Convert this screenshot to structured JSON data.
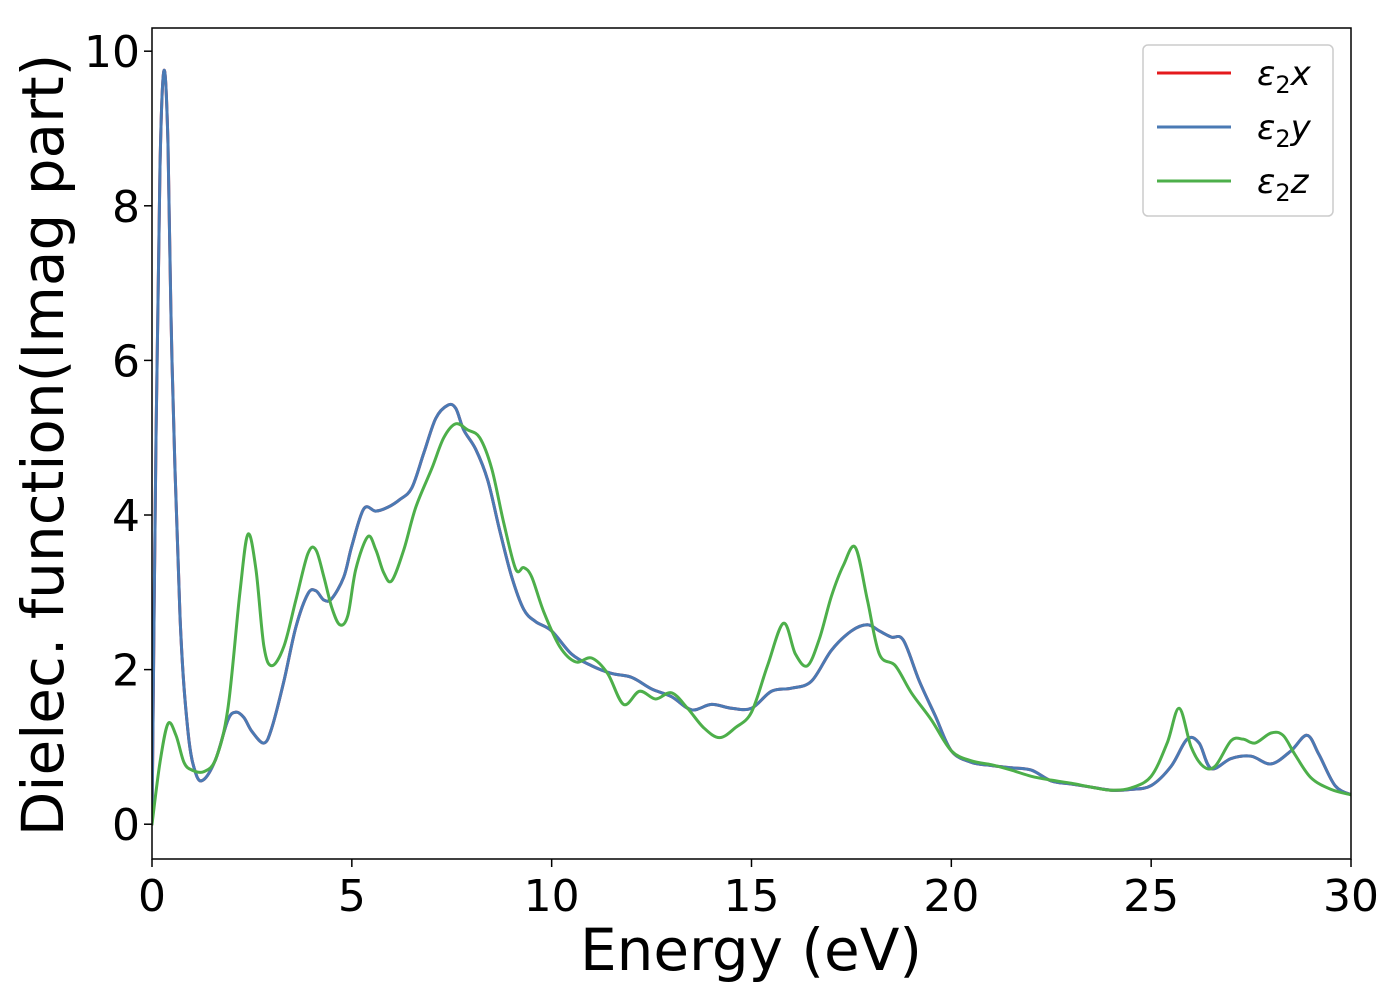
{
  "chart_data": {
    "type": "line",
    "xlabel": "Energy (eV)",
    "ylabel": "Dielec. function(Imag part)",
    "xlim": [
      0,
      30
    ],
    "ylim": [
      -0.45,
      10.3
    ],
    "xticks": [
      0,
      5,
      10,
      15,
      20,
      25,
      30
    ],
    "yticks": [
      0,
      2,
      4,
      6,
      8,
      10
    ],
    "grid": false,
    "legend_position": "top-right",
    "series": [
      {
        "name": "ε2x",
        "legend_base": "ε",
        "legend_sub": "2",
        "legend_var": "x",
        "color": "#e41a1c",
        "x": [
          0,
          0.1,
          0.2,
          0.3,
          0.4,
          0.5,
          0.7,
          0.9,
          1.1,
          1.3,
          1.6,
          1.9,
          2.1,
          2.3,
          2.5,
          2.8,
          3.0,
          3.3,
          3.6,
          3.9,
          4.1,
          4.3,
          4.5,
          4.8,
          5.0,
          5.3,
          5.6,
          5.9,
          6.2,
          6.5,
          6.8,
          7.1,
          7.4,
          7.6,
          7.8,
          8.1,
          8.4,
          8.7,
          9.0,
          9.3,
          9.6,
          10.0,
          10.5,
          11.0,
          11.5,
          12.0,
          12.5,
          13.0,
          13.5,
          14.0,
          14.5,
          15.0,
          15.5,
          16.0,
          16.5,
          17.0,
          17.5,
          17.9,
          18.2,
          18.5,
          18.8,
          19.2,
          19.6,
          20.0,
          20.5,
          21.0,
          21.5,
          22.0,
          22.5,
          23.0,
          23.5,
          24.0,
          24.5,
          25.0,
          25.5,
          25.9,
          26.2,
          26.5,
          27.0,
          27.5,
          28.0,
          28.5,
          28.9,
          29.2,
          29.6,
          30.0
        ],
        "y": [
          0,
          5.0,
          8.5,
          9.75,
          8.8,
          6.0,
          2.7,
          1.2,
          0.65,
          0.58,
          0.85,
          1.35,
          1.45,
          1.38,
          1.2,
          1.05,
          1.25,
          1.85,
          2.55,
          2.98,
          3.02,
          2.9,
          2.92,
          3.2,
          3.6,
          4.08,
          4.05,
          4.1,
          4.2,
          4.35,
          4.8,
          5.25,
          5.42,
          5.38,
          5.1,
          4.85,
          4.45,
          3.8,
          3.2,
          2.78,
          2.62,
          2.5,
          2.2,
          2.05,
          1.95,
          1.9,
          1.75,
          1.65,
          1.48,
          1.55,
          1.5,
          1.5,
          1.72,
          1.76,
          1.85,
          2.25,
          2.5,
          2.58,
          2.5,
          2.42,
          2.38,
          1.85,
          1.4,
          0.95,
          0.8,
          0.76,
          0.73,
          0.7,
          0.56,
          0.52,
          0.48,
          0.44,
          0.45,
          0.5,
          0.75,
          1.1,
          1.05,
          0.72,
          0.85,
          0.88,
          0.78,
          0.95,
          1.15,
          0.9,
          0.5,
          0.38
        ]
      },
      {
        "name": "ε2y",
        "legend_base": "ε",
        "legend_sub": "2",
        "legend_var": "y",
        "color": "#4a7ab4",
        "x": [
          0,
          0.1,
          0.2,
          0.3,
          0.4,
          0.5,
          0.7,
          0.9,
          1.1,
          1.3,
          1.6,
          1.9,
          2.1,
          2.3,
          2.5,
          2.8,
          3.0,
          3.3,
          3.6,
          3.9,
          4.1,
          4.3,
          4.5,
          4.8,
          5.0,
          5.3,
          5.6,
          5.9,
          6.2,
          6.5,
          6.8,
          7.1,
          7.4,
          7.6,
          7.8,
          8.1,
          8.4,
          8.7,
          9.0,
          9.3,
          9.6,
          10.0,
          10.5,
          11.0,
          11.5,
          12.0,
          12.5,
          13.0,
          13.5,
          14.0,
          14.5,
          15.0,
          15.5,
          16.0,
          16.5,
          17.0,
          17.5,
          17.9,
          18.2,
          18.5,
          18.8,
          19.2,
          19.6,
          20.0,
          20.5,
          21.0,
          21.5,
          22.0,
          22.5,
          23.0,
          23.5,
          24.0,
          24.5,
          25.0,
          25.5,
          25.9,
          26.2,
          26.5,
          27.0,
          27.5,
          28.0,
          28.5,
          28.9,
          29.2,
          29.6,
          30.0
        ],
        "y": [
          0,
          5.0,
          8.5,
          9.75,
          8.8,
          6.0,
          2.7,
          1.2,
          0.65,
          0.58,
          0.85,
          1.35,
          1.45,
          1.38,
          1.2,
          1.05,
          1.25,
          1.85,
          2.55,
          2.98,
          3.02,
          2.9,
          2.92,
          3.2,
          3.6,
          4.08,
          4.05,
          4.1,
          4.2,
          4.35,
          4.8,
          5.25,
          5.42,
          5.38,
          5.1,
          4.85,
          4.45,
          3.8,
          3.2,
          2.78,
          2.62,
          2.5,
          2.2,
          2.05,
          1.95,
          1.9,
          1.75,
          1.65,
          1.48,
          1.55,
          1.5,
          1.5,
          1.72,
          1.76,
          1.85,
          2.25,
          2.5,
          2.58,
          2.5,
          2.42,
          2.38,
          1.85,
          1.4,
          0.95,
          0.8,
          0.76,
          0.73,
          0.7,
          0.56,
          0.52,
          0.48,
          0.44,
          0.45,
          0.5,
          0.75,
          1.1,
          1.05,
          0.72,
          0.85,
          0.88,
          0.78,
          0.95,
          1.15,
          0.9,
          0.5,
          0.38
        ]
      },
      {
        "name": "ε2z",
        "legend_base": "ε",
        "legend_sub": "2",
        "legend_var": "z",
        "color": "#4daf4a",
        "x": [
          0,
          0.2,
          0.4,
          0.6,
          0.8,
          1.0,
          1.3,
          1.6,
          1.9,
          2.2,
          2.4,
          2.6,
          2.8,
          3.0,
          3.3,
          3.6,
          3.9,
          4.1,
          4.3,
          4.5,
          4.7,
          4.9,
          5.1,
          5.4,
          5.6,
          5.8,
          6.0,
          6.3,
          6.6,
          7.0,
          7.3,
          7.6,
          7.9,
          8.2,
          8.5,
          8.8,
          9.1,
          9.3,
          9.5,
          9.8,
          10.2,
          10.6,
          11.0,
          11.4,
          11.8,
          12.2,
          12.6,
          13.0,
          13.4,
          13.8,
          14.2,
          14.6,
          15.0,
          15.4,
          15.8,
          16.1,
          16.4,
          16.7,
          17.0,
          17.3,
          17.6,
          17.9,
          18.2,
          18.6,
          19.0,
          19.5,
          20.0,
          20.5,
          21.0,
          21.5,
          22.0,
          22.5,
          23.0,
          23.5,
          24.0,
          24.5,
          25.0,
          25.4,
          25.7,
          26.0,
          26.3,
          26.6,
          27.0,
          27.3,
          27.6,
          28.0,
          28.3,
          28.6,
          29.0,
          29.5,
          30.0
        ],
        "y": [
          0,
          0.8,
          1.3,
          1.15,
          0.8,
          0.7,
          0.68,
          0.85,
          1.5,
          3.0,
          3.75,
          3.3,
          2.3,
          2.05,
          2.3,
          2.9,
          3.5,
          3.55,
          3.2,
          2.8,
          2.58,
          2.7,
          3.3,
          3.72,
          3.55,
          3.25,
          3.15,
          3.55,
          4.1,
          4.6,
          5.0,
          5.18,
          5.1,
          5.0,
          4.6,
          3.9,
          3.3,
          3.32,
          3.2,
          2.75,
          2.3,
          2.1,
          2.15,
          1.95,
          1.55,
          1.72,
          1.62,
          1.7,
          1.5,
          1.25,
          1.12,
          1.25,
          1.45,
          2.05,
          2.6,
          2.2,
          2.05,
          2.4,
          2.95,
          3.35,
          3.58,
          2.9,
          2.2,
          2.05,
          1.7,
          1.35,
          0.95,
          0.82,
          0.77,
          0.7,
          0.62,
          0.57,
          0.53,
          0.48,
          0.44,
          0.47,
          0.62,
          1.05,
          1.5,
          1.0,
          0.75,
          0.75,
          1.08,
          1.1,
          1.05,
          1.18,
          1.15,
          0.9,
          0.6,
          0.45,
          0.38
        ]
      }
    ]
  }
}
